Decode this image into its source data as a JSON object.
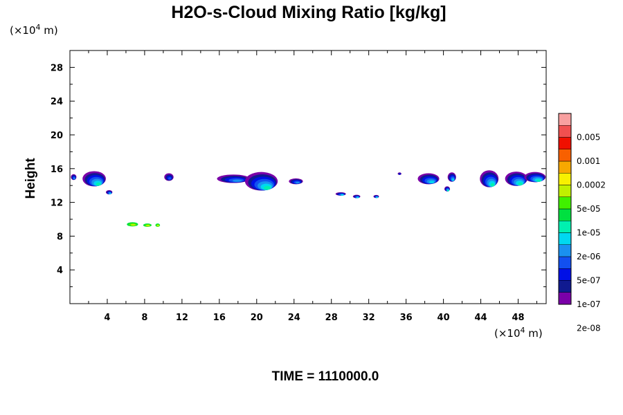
{
  "chart_data": {
    "type": "heatmap",
    "title": "H2O-s-Cloud Mixing Ratio [kg/kg]",
    "ylabel": "Height",
    "x_unit": "(×10⁴ m)",
    "x_unit_base": "(×10",
    "x_unit_exp": "4",
    "x_unit_tail": " m)",
    "y_unit_base": "(×10",
    "y_unit_exp": "4",
    "y_unit_tail": " m)",
    "xlim": [
      0,
      51
    ],
    "ylim": [
      0,
      30
    ],
    "x_ticks": [
      "4",
      "8",
      "12",
      "16",
      "20",
      "24",
      "28",
      "32",
      "36",
      "40",
      "44",
      "48"
    ],
    "x_tick_values": [
      4,
      8,
      12,
      16,
      20,
      24,
      28,
      32,
      36,
      40,
      44,
      48
    ],
    "y_ticks": [
      "4",
      "8",
      "12",
      "16",
      "20",
      "24",
      "28"
    ],
    "y_tick_values": [
      4,
      8,
      12,
      16,
      20,
      24,
      28
    ],
    "time_label": "TIME = 1110000.0",
    "colorbar": {
      "labels": [
        "0.005",
        "0.001",
        "0.0002",
        "5e-05",
        "1e-05",
        "2e-06",
        "5e-07",
        "1e-07",
        "2e-08"
      ],
      "colors_bottom_to_top": [
        "#7a00a8",
        "#101a90",
        "#0010e6",
        "#1250f0",
        "#1a90f0",
        "#00d8f0",
        "#00f0b0",
        "#00e040",
        "#40f000",
        "#c0f000",
        "#f8f000",
        "#f8a800",
        "#f86000",
        "#f01000",
        "#f05050",
        "#f8a0a0"
      ]
    },
    "clouds": [
      {
        "x": 0.4,
        "y": 15.0,
        "w": 0.6,
        "h": 0.7,
        "level": 4
      },
      {
        "x": 2.6,
        "y": 14.8,
        "w": 2.5,
        "h": 1.8,
        "level": 6
      },
      {
        "x": 4.2,
        "y": 13.2,
        "w": 0.7,
        "h": 0.5,
        "level": 5
      },
      {
        "x": 10.6,
        "y": 15.0,
        "w": 1.0,
        "h": 0.9,
        "level": 3
      },
      {
        "x": 17.5,
        "y": 14.8,
        "w": 3.5,
        "h": 1.0,
        "level": 4
      },
      {
        "x": 20.5,
        "y": 14.5,
        "w": 3.5,
        "h": 2.2,
        "level": 6
      },
      {
        "x": 24.2,
        "y": 14.5,
        "w": 1.5,
        "h": 0.7,
        "level": 4
      },
      {
        "x": 29.0,
        "y": 13.0,
        "w": 1.1,
        "h": 0.4,
        "level": 5
      },
      {
        "x": 30.7,
        "y": 12.7,
        "w": 0.8,
        "h": 0.4,
        "level": 5
      },
      {
        "x": 32.8,
        "y": 12.7,
        "w": 0.6,
        "h": 0.35,
        "level": 5
      },
      {
        "x": 35.3,
        "y": 15.4,
        "w": 0.4,
        "h": 0.3,
        "level": 2
      },
      {
        "x": 38.4,
        "y": 14.8,
        "w": 2.3,
        "h": 1.3,
        "level": 5
      },
      {
        "x": 40.9,
        "y": 15.0,
        "w": 0.9,
        "h": 1.1,
        "level": 5
      },
      {
        "x": 40.4,
        "y": 13.6,
        "w": 0.6,
        "h": 0.6,
        "level": 6
      },
      {
        "x": 44.9,
        "y": 14.8,
        "w": 2.0,
        "h": 2.0,
        "level": 6
      },
      {
        "x": 47.8,
        "y": 14.8,
        "w": 2.4,
        "h": 1.7,
        "level": 6
      },
      {
        "x": 49.8,
        "y": 15.0,
        "w": 2.3,
        "h": 1.2,
        "level": 6
      },
      {
        "x": 6.7,
        "y": 9.4,
        "w": 1.2,
        "h": 0.5,
        "level": 9
      },
      {
        "x": 8.3,
        "y": 9.3,
        "w": 0.9,
        "h": 0.4,
        "level": 9
      },
      {
        "x": 9.4,
        "y": 9.3,
        "w": 0.5,
        "h": 0.4,
        "level": 9
      }
    ]
  }
}
